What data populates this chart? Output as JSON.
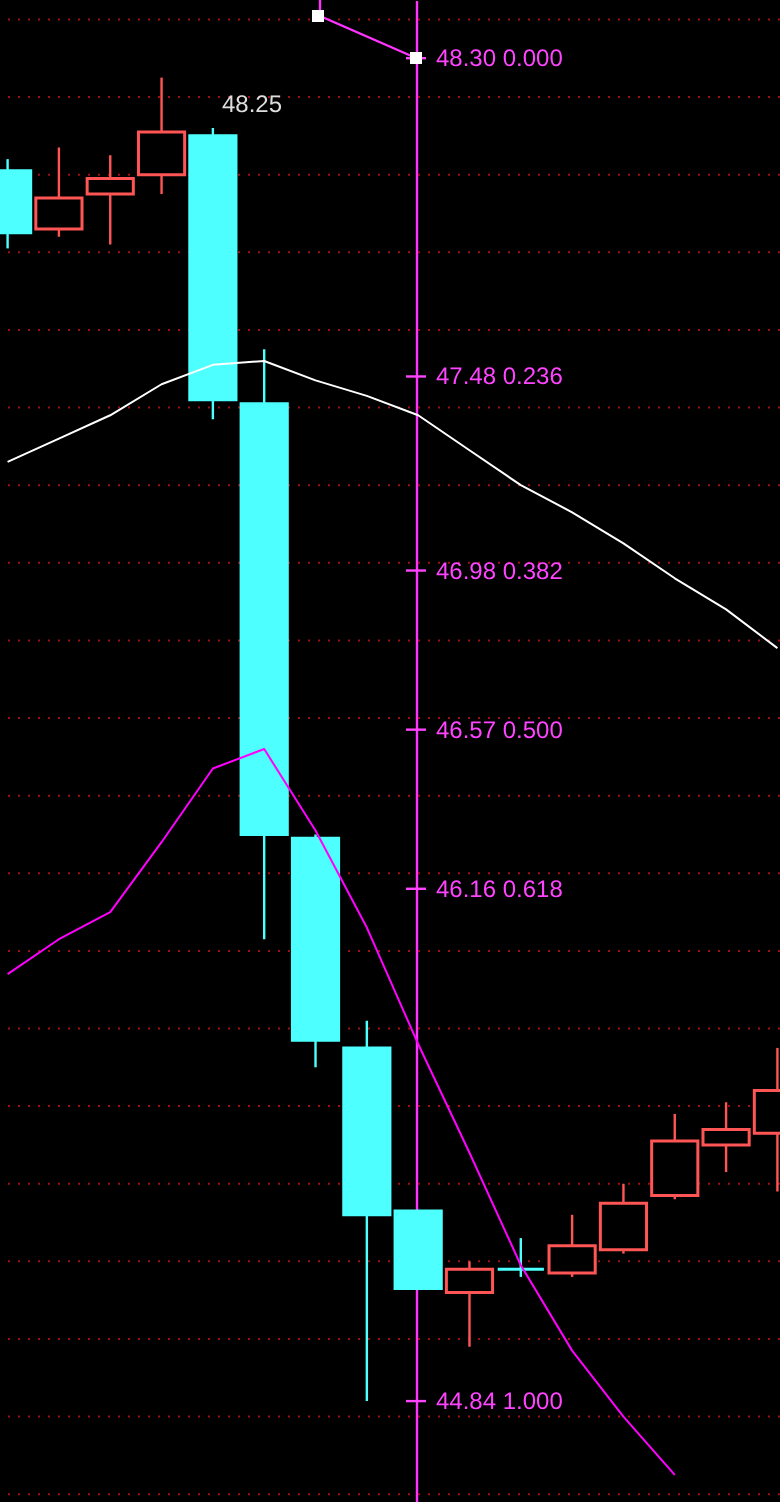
{
  "chart_data": {
    "type": "candlestick",
    "categories": [
      null,
      null,
      null,
      null,
      null,
      null,
      null,
      null,
      null,
      null,
      null,
      null,
      null,
      null,
      null,
      null
    ],
    "ohlc": [
      [
        48.01,
        48.04,
        47.81,
        47.85
      ],
      [
        47.86,
        48.07,
        47.84,
        47.94
      ],
      [
        47.95,
        48.05,
        47.82,
        47.99
      ],
      [
        48.0,
        48.25,
        47.95,
        48.11
      ],
      [
        48.1,
        48.12,
        47.37,
        47.42
      ],
      [
        47.41,
        47.55,
        46.03,
        46.3
      ],
      [
        46.29,
        46.3,
        45.7,
        45.77
      ],
      [
        45.75,
        45.82,
        44.84,
        45.32
      ],
      [
        45.33,
        45.33,
        45.13,
        45.13
      ],
      [
        45.12,
        45.2,
        44.98,
        45.18
      ],
      [
        45.18,
        45.26,
        45.16,
        45.18
      ],
      [
        45.17,
        45.32,
        45.16,
        45.24
      ],
      [
        45.23,
        45.4,
        45.22,
        45.35
      ],
      [
        45.37,
        45.58,
        45.36,
        45.51
      ],
      [
        45.5,
        45.61,
        45.43,
        45.54
      ],
      [
        45.53,
        45.75,
        45.38,
        45.64
      ]
    ],
    "colors": [
      "#4dffff",
      "#ff5555",
      "#ff5555",
      "#ff5555",
      "#4dffff",
      "#4dffff",
      "#4dffff",
      "#4dffff",
      "#4dffff",
      "#ff5555",
      "#4dffff",
      "#ff5555",
      "#ff5555",
      "#ff5555",
      "#ff5555",
      "#ff5555"
    ],
    "series": [
      {
        "type": "line",
        "color": "#ffffff",
        "values": [
          47.26,
          47.32,
          47.38,
          47.46,
          47.51,
          47.52,
          47.47,
          47.43,
          47.38,
          47.29,
          47.2,
          47.13,
          47.05,
          46.96,
          46.88,
          46.78
        ]
      },
      {
        "type": "line",
        "color": "#ff00ff",
        "values": [
          45.94,
          46.03,
          46.1,
          46.28,
          46.47,
          46.52,
          46.31,
          46.06,
          45.76,
          45.48,
          45.19,
          44.97,
          44.8,
          44.65,
          null,
          null
        ]
      }
    ],
    "ylim": [
      44.58,
      48.45
    ],
    "yticks": [
      {
        "value": 48.4,
        "label": null
      },
      {
        "value": 48.2,
        "label": null
      },
      {
        "value": 48.0,
        "label": null
      },
      {
        "value": 47.8,
        "label": null
      },
      {
        "value": 47.6,
        "label": null
      },
      {
        "value": 47.4,
        "label": null
      },
      {
        "value": 47.2,
        "label": null
      },
      {
        "value": 47.0,
        "label": null
      },
      {
        "value": 46.8,
        "label": null
      },
      {
        "value": 46.6,
        "label": null
      },
      {
        "value": 46.4,
        "label": null
      },
      {
        "value": 46.2,
        "label": null
      },
      {
        "value": 46.0,
        "label": null
      },
      {
        "value": 45.8,
        "label": null
      },
      {
        "value": 45.6,
        "label": null
      },
      {
        "value": 45.4,
        "label": null
      },
      {
        "value": 45.2,
        "label": null
      },
      {
        "value": 45.0,
        "label": null
      },
      {
        "value": 44.8,
        "label": null
      },
      {
        "value": 44.6,
        "label": null
      }
    ],
    "grid": true,
    "ref_lines": [
      {
        "axis": "y",
        "value": 48.3,
        "label": "48.30 0.000",
        "color": "#ff44ff"
      },
      {
        "axis": "y",
        "value": 47.48,
        "label": "47.48 0.236",
        "color": "#ff44ff"
      },
      {
        "axis": "y",
        "value": 46.98,
        "label": "46.98 0.382",
        "color": "#ff44ff"
      },
      {
        "axis": "y",
        "value": 46.57,
        "label": "46.57 0.500",
        "color": "#ff44ff"
      },
      {
        "axis": "y",
        "value": 46.16,
        "label": "46.16 0.618",
        "color": "#ff44ff"
      },
      {
        "axis": "y",
        "value": 44.84,
        "label": "44.84 1.000",
        "color": "#ff44ff"
      }
    ],
    "annotations": [
      "48.25"
    ]
  }
}
